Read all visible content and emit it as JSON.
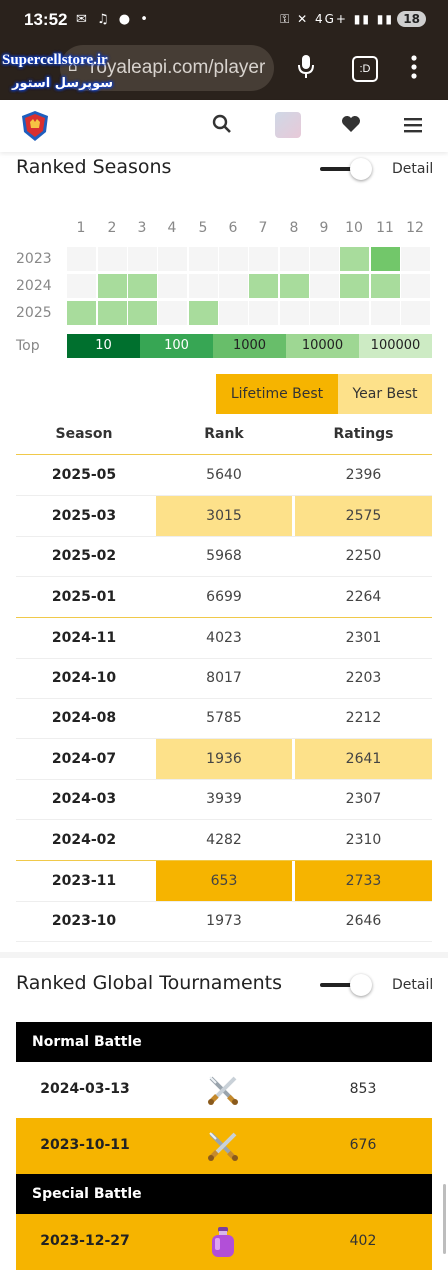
{
  "status_bar": {
    "time": "13:52",
    "left_icons": "✉ ♫ ● •",
    "right_icons": "⚿ ✕ 4G+ ▮▮ ▮▮",
    "battery": "18"
  },
  "browser": {
    "url": "royaleapi.com/player",
    "tab_label": ":D",
    "lock_glyph": "⌂"
  },
  "watermark": {
    "line1": "Supercellstore.ir",
    "line2": "سوپرسل استور"
  },
  "ranked_seasons": {
    "title": "Ranked Seasons",
    "detail_label": "Detail",
    "months": [
      "1",
      "2",
      "3",
      "4",
      "5",
      "6",
      "7",
      "8",
      "9",
      "10",
      "11",
      "12"
    ],
    "years": [
      {
        "label": "2023",
        "levels": [
          0,
          0,
          0,
          0,
          0,
          0,
          0,
          0,
          0,
          1,
          2,
          0
        ]
      },
      {
        "label": "2024",
        "levels": [
          0,
          1,
          1,
          0,
          0,
          0,
          1,
          1,
          0,
          1,
          1,
          0
        ]
      },
      {
        "label": "2025",
        "levels": [
          1,
          1,
          1,
          0,
          1,
          0,
          0,
          0,
          0,
          0,
          0,
          0
        ]
      }
    ],
    "top_label": "Top",
    "legend": [
      {
        "label": "10",
        "color": "#00702e"
      },
      {
        "label": "100",
        "color": "#37a654"
      },
      {
        "label": "1000",
        "color": "#68be6a"
      },
      {
        "label": "10000",
        "color": "#9ed793"
      },
      {
        "label": "100000",
        "color": "#cdebc4"
      }
    ],
    "tabs": [
      "Lifetime Best",
      "Year Best"
    ],
    "headers": {
      "season": "Season",
      "rank": "Rank",
      "ratings": "Ratings"
    },
    "rows": [
      {
        "season": "2025-05",
        "rank": "5640",
        "rating": "2396",
        "hl": ""
      },
      {
        "season": "2025-03",
        "rank": "3015",
        "rating": "2575",
        "hl": "light"
      },
      {
        "season": "2025-02",
        "rank": "5968",
        "rating": "2250",
        "hl": ""
      },
      {
        "season": "2025-01",
        "rank": "6699",
        "rating": "2264",
        "hl": ""
      },
      {
        "season": "2024-11",
        "rank": "4023",
        "rating": "2301",
        "hl": ""
      },
      {
        "season": "2024-10",
        "rank": "8017",
        "rating": "2203",
        "hl": ""
      },
      {
        "season": "2024-08",
        "rank": "5785",
        "rating": "2212",
        "hl": ""
      },
      {
        "season": "2024-07",
        "rank": "1936",
        "rating": "2641",
        "hl": "light"
      },
      {
        "season": "2024-03",
        "rank": "3939",
        "rating": "2307",
        "hl": ""
      },
      {
        "season": "2024-02",
        "rank": "4282",
        "rating": "2310",
        "hl": ""
      },
      {
        "season": "2023-11",
        "rank": "653",
        "rating": "2733",
        "hl": "strong"
      },
      {
        "season": "2023-10",
        "rank": "1973",
        "rating": "2646",
        "hl": ""
      }
    ]
  },
  "tournaments": {
    "title": "Ranked Global Tournaments",
    "detail_label": "Detail",
    "normal_label": "Normal Battle",
    "special_label": "Special Battle",
    "normal_rows": [
      {
        "date": "2024-03-13",
        "icon": "crossed-swords-icon",
        "value": "853",
        "hl": ""
      },
      {
        "date": "2023-10-11",
        "icon": "crossed-swords-icon",
        "value": "676",
        "hl": "strong"
      }
    ],
    "special_rows": [
      {
        "date": "2023-12-27",
        "icon": "elixir-bottle-icon",
        "value": "402",
        "hl": "strong"
      }
    ]
  },
  "colors": {
    "accent": "#f6b400",
    "accent_light": "#fde18a",
    "cell_light": "#a8dc9c",
    "cell_mid": "#72c76a",
    "cell_empty": "#f5f5f5"
  }
}
